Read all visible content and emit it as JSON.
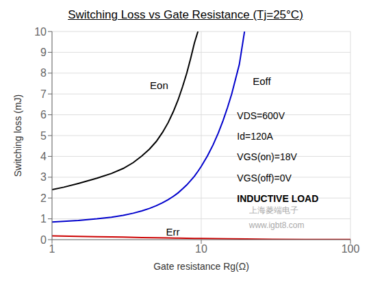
{
  "chart_data": {
    "type": "line",
    "title": "Switching Loss vs Gate Resistance (Tj=25°C)",
    "xlabel": "Gate resistance Rg(Ω)",
    "ylabel": "Switching loss (mJ)",
    "log": "x",
    "grid": true,
    "xlim": [
      1,
      100
    ],
    "ylim": [
      0,
      10
    ],
    "xticks": [
      1,
      10,
      100
    ],
    "yticks": [
      0,
      1,
      2,
      3,
      4,
      5,
      6,
      7,
      8,
      9,
      10
    ],
    "series": [
      {
        "name": "Eon",
        "color": "#000000",
        "x": [
          1.0,
          1.2,
          1.5,
          2.0,
          2.5,
          3.0,
          3.5,
          4.0,
          4.5,
          5.0,
          5.5,
          6.0,
          6.5,
          7.0,
          7.5,
          8.0,
          8.5,
          9.0,
          9.5
        ],
        "values": [
          2.4,
          2.52,
          2.7,
          2.95,
          3.18,
          3.42,
          3.7,
          4.02,
          4.35,
          4.72,
          5.15,
          5.62,
          6.15,
          6.72,
          7.35,
          8.0,
          8.72,
          9.45,
          10.0
        ]
      },
      {
        "name": "Eoff",
        "color": "#0000cc",
        "x": [
          1.0,
          1.5,
          2.0,
          2.5,
          3.0,
          3.5,
          4.0,
          4.5,
          5.0,
          5.5,
          6.0,
          6.5,
          7.0,
          7.5,
          8.0,
          8.5,
          9.0,
          9.5,
          10.0,
          11.0,
          12.0,
          13.0,
          14.0,
          15.0,
          16.0,
          18.0,
          19.5
        ],
        "values": [
          0.85,
          0.92,
          1.0,
          1.08,
          1.17,
          1.27,
          1.38,
          1.5,
          1.63,
          1.77,
          1.92,
          2.08,
          2.25,
          2.44,
          2.63,
          2.84,
          3.05,
          3.28,
          3.52,
          4.02,
          4.55,
          5.12,
          5.72,
          6.35,
          7.0,
          8.42,
          10.0
        ]
      },
      {
        "name": "Err",
        "color": "#cc0000",
        "x": [
          1.0,
          1.5,
          2.0,
          2.5,
          3.0,
          4.0,
          5.0,
          6.0,
          7.0,
          8.0,
          9.0,
          10.0,
          15.0,
          20.0,
          30.0,
          50.0,
          100.0
        ],
        "values": [
          0.18,
          0.16,
          0.14,
          0.13,
          0.12,
          0.1,
          0.09,
          0.08,
          0.07,
          0.065,
          0.06,
          0.055,
          0.04,
          0.03,
          0.02,
          0.01,
          0.005
        ]
      }
    ],
    "annotations": [
      [
        "VDS=600V",
        "Id=120A",
        "VGS(on)=18V",
        "VGS(off)=0V",
        "INDUCTIVE LOAD"
      ],
      [
        "上海菱端电子",
        "www.igbt8.com"
      ]
    ]
  }
}
